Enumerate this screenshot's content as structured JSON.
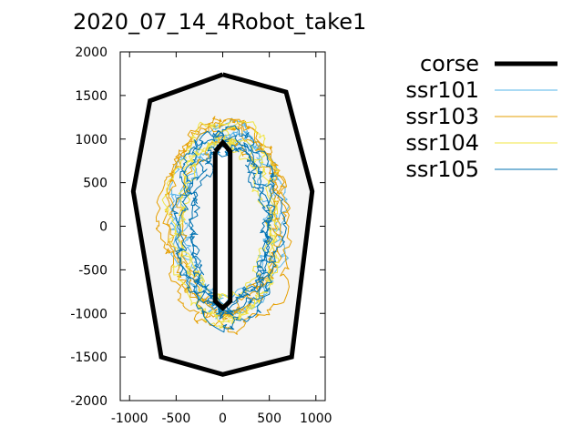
{
  "chart_data": {
    "type": "line",
    "title": "2020_07_14_4Robot_take1",
    "xlabel": "",
    "ylabel": "",
    "xlim": [
      -1100,
      1100
    ],
    "ylim": [
      -2000,
      2000
    ],
    "xticks": [
      -1000,
      -500,
      0,
      500,
      1000
    ],
    "yticks": [
      -2000,
      -1500,
      -1000,
      -500,
      0,
      500,
      1000,
      1500,
      2000
    ],
    "grid": false,
    "legend_position": "top-right",
    "course": {
      "name": "corse",
      "color": "#000000",
      "outer": [
        [
          0,
          1740
        ],
        [
          680,
          1540
        ],
        [
          960,
          400
        ],
        [
          740,
          -1500
        ],
        [
          0,
          -1700
        ],
        [
          -660,
          -1500
        ],
        [
          -960,
          400
        ],
        [
          -780,
          1440
        ],
        [
          0,
          1740
        ]
      ],
      "inner": [
        [
          -80,
          860
        ],
        [
          0,
          960
        ],
        [
          80,
          860
        ],
        [
          80,
          -860
        ],
        [
          0,
          -940
        ],
        [
          -80,
          -860
        ],
        [
          -80,
          860
        ]
      ]
    },
    "series": [
      {
        "name": "ssr101",
        "color": "#56b4e9",
        "rx": 620,
        "ry": 1180,
        "cx": 60,
        "cy": 60,
        "loops": 3,
        "seed": 11
      },
      {
        "name": "ssr103",
        "color": "#e69f00",
        "rx": 680,
        "ry": 1230,
        "cx": 40,
        "cy": 40,
        "loops": 4,
        "seed": 23
      },
      {
        "name": "ssr104",
        "color": "#f0e442",
        "rx": 600,
        "ry": 1160,
        "cx": 30,
        "cy": 50,
        "loops": 3,
        "seed": 37
      },
      {
        "name": "ssr105",
        "color": "#0072b2",
        "rx": 560,
        "ry": 1150,
        "cx": 50,
        "cy": 0,
        "loops": 4,
        "seed": 53
      }
    ]
  }
}
